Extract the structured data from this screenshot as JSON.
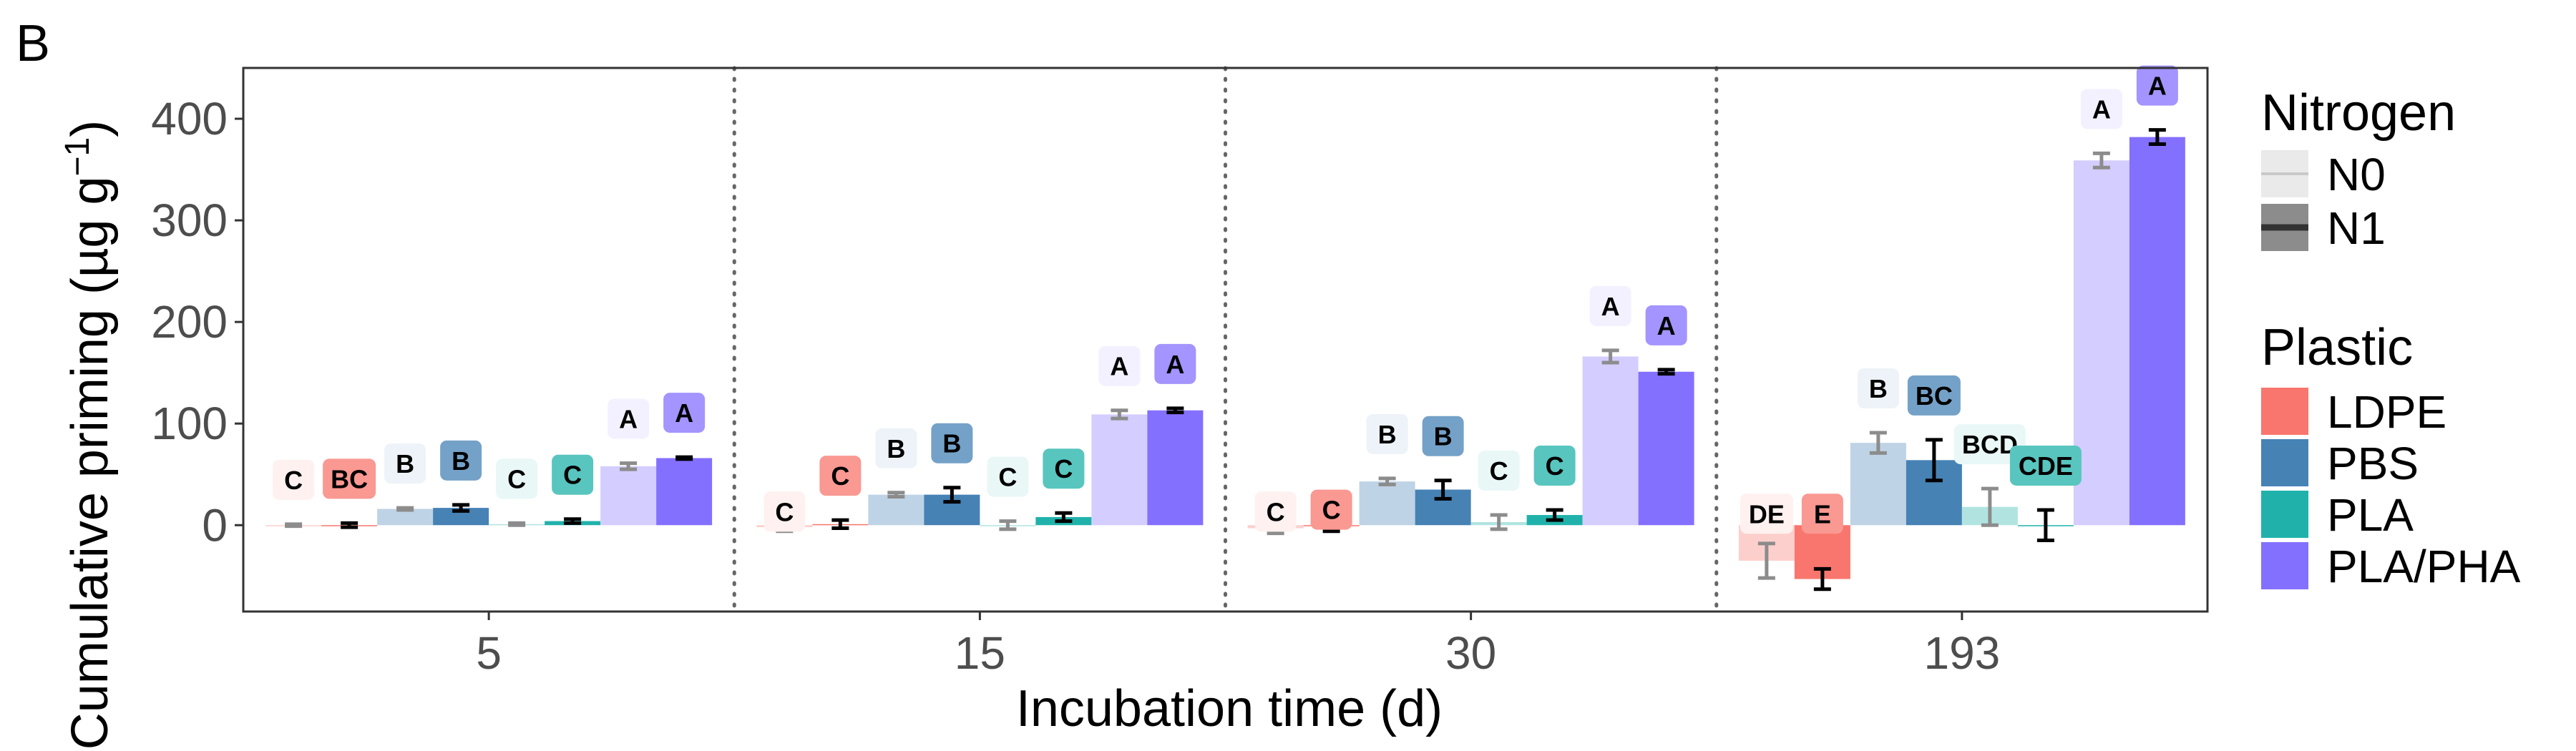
{
  "chart_data": {
    "type": "bar",
    "panel_tag": "B",
    "xlabel": "Incubation time (d)",
    "ylabel": "Cumulative priming (µg g",
    "ylabel_superscript": "−1",
    "ylabel_close": ")",
    "ylim": [
      -85,
      450
    ],
    "yticks": [
      0,
      100,
      200,
      300,
      400
    ],
    "grid": false,
    "legend_position": "right",
    "categories": [
      "5",
      "15",
      "30",
      "193"
    ],
    "legends": {
      "nitrogen": {
        "title": "Nitrogen",
        "items": [
          "N0",
          "N1"
        ]
      },
      "plastic": {
        "title": "Plastic",
        "items": [
          "LDPE",
          "PBS",
          "PLA",
          "PLA/PHA"
        ]
      }
    },
    "colors": {
      "LDPE": "#F8766D",
      "PBS": "#4682B4",
      "PLA": "#20B2AA",
      "PLA/PHA": "#8470FF"
    },
    "series": [
      {
        "plastic": "LDPE",
        "nitrogen": "N0",
        "values": [
          0,
          -2,
          -3,
          -35
        ],
        "errors": [
          1,
          4,
          5,
          17
        ],
        "letters": [
          "C",
          "C",
          "C",
          "DE"
        ]
      },
      {
        "plastic": "LDPE",
        "nitrogen": "N1",
        "values": [
          0,
          1,
          -1,
          -53
        ],
        "errors": [
          2,
          4,
          5,
          10
        ],
        "letters": [
          "BC",
          "C",
          "C",
          "E"
        ]
      },
      {
        "plastic": "PBS",
        "nitrogen": "N0",
        "values": [
          16,
          30,
          43,
          81
        ],
        "errors": [
          1,
          2,
          3,
          10
        ],
        "letters": [
          "B",
          "B",
          "B",
          "B"
        ]
      },
      {
        "plastic": "PBS",
        "nitrogen": "N1",
        "values": [
          17,
          30,
          35,
          64
        ],
        "errors": [
          3,
          7,
          9,
          20
        ],
        "letters": [
          "B",
          "B",
          "B",
          "BC"
        ]
      },
      {
        "plastic": "PLA",
        "nitrogen": "N0",
        "values": [
          1,
          0,
          3,
          18
        ],
        "errors": [
          1,
          4,
          7,
          18
        ],
        "letters": [
          "C",
          "C",
          "C",
          "BCD"
        ]
      },
      {
        "plastic": "PLA",
        "nitrogen": "N1",
        "values": [
          4,
          8,
          10,
          0
        ],
        "errors": [
          2,
          4,
          5,
          15
        ],
        "letters": [
          "C",
          "C",
          "C",
          "CDE"
        ]
      },
      {
        "plastic": "PLA/PHA",
        "nitrogen": "N0",
        "values": [
          58,
          109,
          166,
          359
        ],
        "errors": [
          3,
          4,
          6,
          7
        ],
        "letters": [
          "A",
          "A",
          "A",
          "A"
        ]
      },
      {
        "plastic": "PLA/PHA",
        "nitrogen": "N1",
        "values": [
          66,
          113,
          151,
          382
        ],
        "errors": [
          1,
          2,
          2,
          7
        ],
        "letters": [
          "A",
          "A",
          "A",
          "A"
        ]
      }
    ]
  }
}
